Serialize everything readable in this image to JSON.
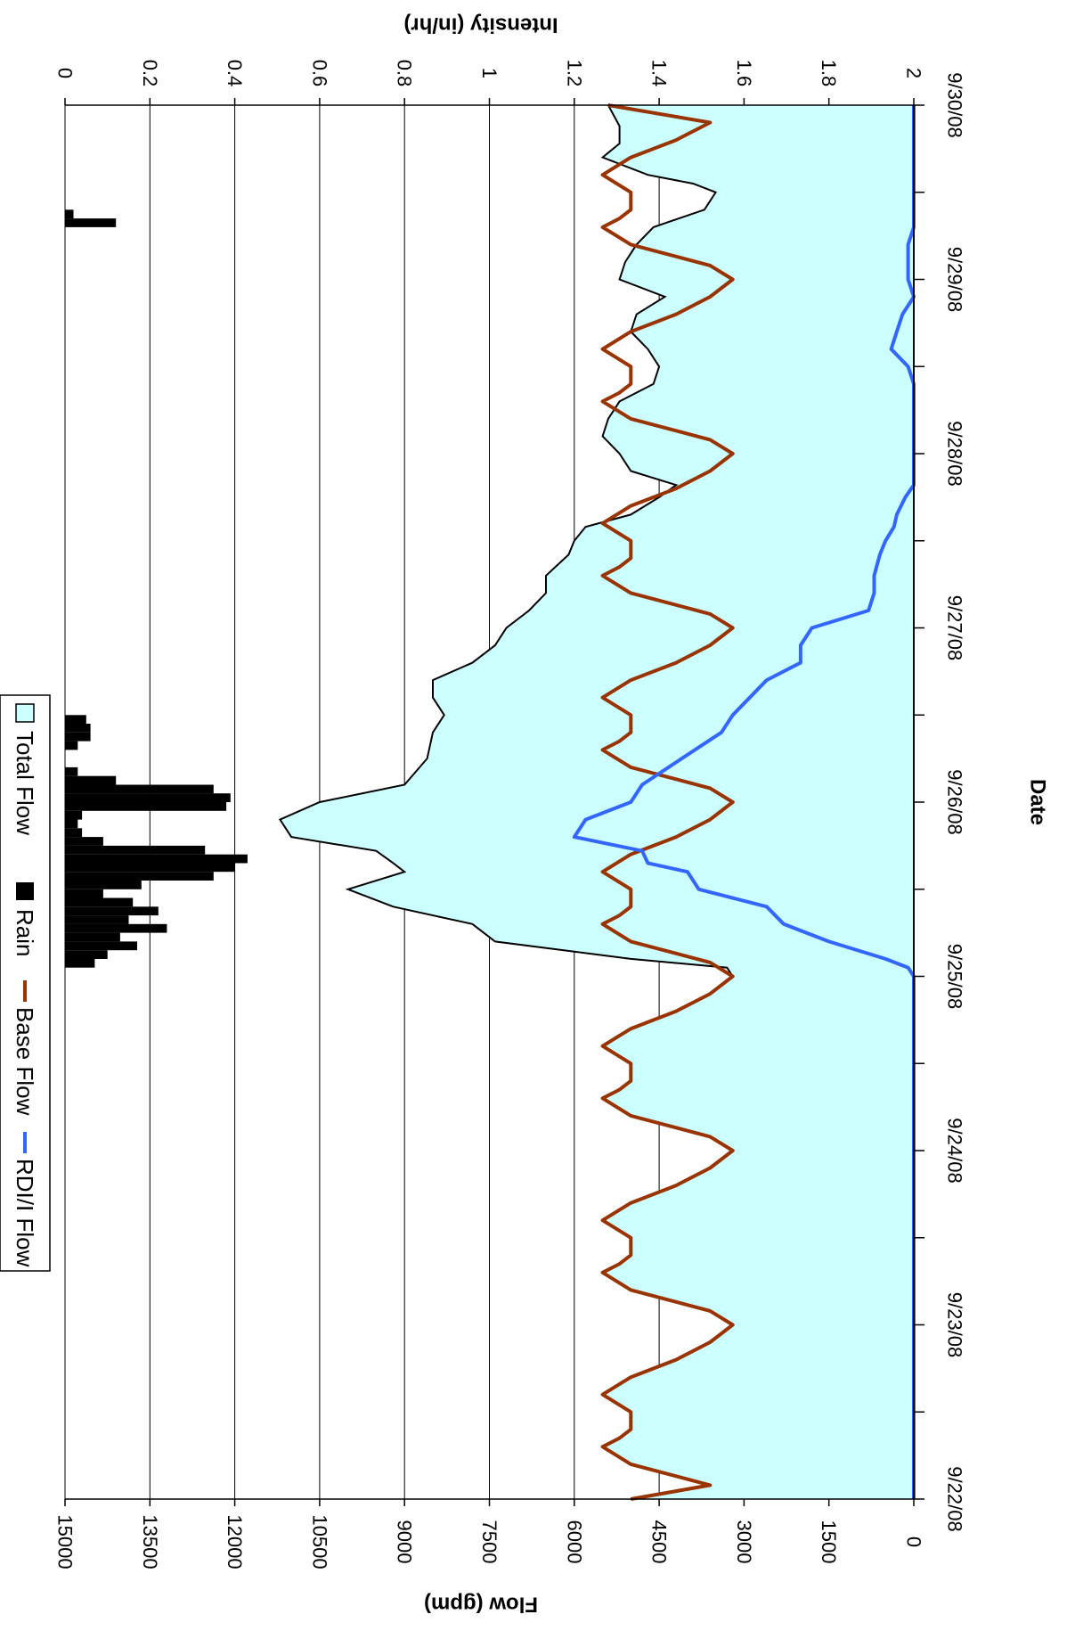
{
  "chart_data": {
    "type": "area",
    "orientation": "rotated-90-clockwise",
    "x_axis": {
      "label": "Date",
      "tick_labels": [
        "9/22/08",
        "9/23/08",
        "9/24/08",
        "9/25/08",
        "9/26/08",
        "9/27/08",
        "9/28/08",
        "9/29/08",
        "9/30/08"
      ],
      "range_days": [
        0,
        8
      ]
    },
    "y_axis_left": {
      "label": "Flow (gpm)",
      "tick_labels": [
        "0",
        "1500",
        "3000",
        "4500",
        "6000",
        "7500",
        "9000",
        "10500",
        "12000",
        "13500",
        "15000"
      ],
      "range": [
        0,
        15000
      ]
    },
    "y_axis_right": {
      "label": "Intensity (in/hr)",
      "tick_labels": [
        "0",
        "0.2",
        "0.4",
        "0.6",
        "0.8",
        "1",
        "1.2",
        "1.4",
        "1.6",
        "1.8",
        "2"
      ],
      "range": [
        0,
        2
      ],
      "inverted": true
    },
    "grid": "horizontal-only",
    "legend": {
      "placement": "top",
      "entries": [
        "Total Flow",
        "Rain",
        "Base Flow",
        "RDI/I Flow"
      ]
    },
    "series": [
      {
        "name": "Total Flow",
        "render": "area",
        "color": "#ccffff",
        "outline": "#000000",
        "points": [
          [
            0,
            5000
          ],
          [
            0.08,
            3600
          ],
          [
            0.2,
            5000
          ],
          [
            0.3,
            5500
          ],
          [
            0.35,
            5200
          ],
          [
            0.4,
            5000
          ],
          [
            0.5,
            5000
          ],
          [
            0.6,
            5500
          ],
          [
            0.7,
            5000
          ],
          [
            0.8,
            4200
          ],
          [
            0.9,
            3600
          ],
          [
            1.0,
            3200
          ],
          [
            1.08,
            3600
          ],
          [
            1.2,
            5000
          ],
          [
            1.3,
            5500
          ],
          [
            1.35,
            5200
          ],
          [
            1.4,
            5000
          ],
          [
            1.5,
            5000
          ],
          [
            1.6,
            5500
          ],
          [
            1.7,
            5000
          ],
          [
            1.8,
            4200
          ],
          [
            1.9,
            3600
          ],
          [
            2.0,
            3200
          ],
          [
            2.08,
            3600
          ],
          [
            2.2,
            5000
          ],
          [
            2.3,
            5500
          ],
          [
            2.35,
            5200
          ],
          [
            2.4,
            5000
          ],
          [
            2.5,
            5000
          ],
          [
            2.6,
            5500
          ],
          [
            2.7,
            5000
          ],
          [
            2.8,
            4200
          ],
          [
            2.9,
            3600
          ],
          [
            3.0,
            3200
          ],
          [
            3.05,
            3300
          ],
          [
            3.1,
            5000
          ],
          [
            3.2,
            7400
          ],
          [
            3.3,
            7800
          ],
          [
            3.4,
            9200
          ],
          [
            3.5,
            10000
          ],
          [
            3.6,
            9000
          ],
          [
            3.65,
            9200
          ],
          [
            3.72,
            9500
          ],
          [
            3.8,
            11000
          ],
          [
            3.9,
            11200
          ],
          [
            4.0,
            10500
          ],
          [
            4.1,
            9000
          ],
          [
            4.25,
            8600
          ],
          [
            4.4,
            8500
          ],
          [
            4.5,
            8300
          ],
          [
            4.6,
            8500
          ],
          [
            4.7,
            8500
          ],
          [
            4.8,
            7800
          ],
          [
            4.9,
            7400
          ],
          [
            5.0,
            7200
          ],
          [
            5.1,
            6800
          ],
          [
            5.2,
            6500
          ],
          [
            5.3,
            6500
          ],
          [
            5.42,
            6100
          ],
          [
            5.5,
            6000
          ],
          [
            5.58,
            5800
          ],
          [
            5.65,
            5000
          ],
          [
            5.75,
            4500
          ],
          [
            5.82,
            4200
          ],
          [
            5.9,
            5000
          ],
          [
            6.0,
            5200
          ],
          [
            6.1,
            5500
          ],
          [
            6.2,
            5400
          ],
          [
            6.3,
            5200
          ],
          [
            6.4,
            4600
          ],
          [
            6.5,
            4500
          ],
          [
            6.6,
            4700
          ],
          [
            6.7,
            5000
          ],
          [
            6.8,
            4900
          ],
          [
            6.9,
            4400
          ],
          [
            7.0,
            5200
          ],
          [
            7.1,
            5100
          ],
          [
            7.2,
            4900
          ],
          [
            7.3,
            4600
          ],
          [
            7.4,
            3700
          ],
          [
            7.5,
            3500
          ],
          [
            7.55,
            3900
          ],
          [
            7.6,
            4700
          ],
          [
            7.7,
            5500
          ],
          [
            7.78,
            5200
          ],
          [
            7.88,
            5200
          ],
          [
            8.0,
            5400
          ]
        ]
      },
      {
        "name": "Base Flow",
        "render": "line",
        "color": "#993300",
        "points": [
          [
            0,
            5000
          ],
          [
            0.08,
            3600
          ],
          [
            0.2,
            5000
          ],
          [
            0.3,
            5500
          ],
          [
            0.35,
            5200
          ],
          [
            0.4,
            5000
          ],
          [
            0.5,
            5000
          ],
          [
            0.6,
            5500
          ],
          [
            0.7,
            5000
          ],
          [
            0.8,
            4200
          ],
          [
            0.9,
            3600
          ],
          [
            1.0,
            3200
          ],
          [
            1.08,
            3600
          ],
          [
            1.2,
            5000
          ],
          [
            1.3,
            5500
          ],
          [
            1.35,
            5200
          ],
          [
            1.4,
            5000
          ],
          [
            1.5,
            5000
          ],
          [
            1.6,
            5500
          ],
          [
            1.7,
            5000
          ],
          [
            1.8,
            4200
          ],
          [
            1.9,
            3600
          ],
          [
            2.0,
            3200
          ],
          [
            2.08,
            3600
          ],
          [
            2.2,
            5000
          ],
          [
            2.3,
            5500
          ],
          [
            2.35,
            5200
          ],
          [
            2.4,
            5000
          ],
          [
            2.5,
            5000
          ],
          [
            2.6,
            5500
          ],
          [
            2.7,
            5000
          ],
          [
            2.8,
            4200
          ],
          [
            2.9,
            3600
          ],
          [
            3.0,
            3200
          ],
          [
            3.08,
            3600
          ],
          [
            3.2,
            5000
          ],
          [
            3.3,
            5500
          ],
          [
            3.35,
            5200
          ],
          [
            3.4,
            5000
          ],
          [
            3.5,
            5000
          ],
          [
            3.6,
            5500
          ],
          [
            3.7,
            5000
          ],
          [
            3.8,
            4200
          ],
          [
            3.9,
            3600
          ],
          [
            4.0,
            3200
          ],
          [
            4.08,
            3600
          ],
          [
            4.2,
            5000
          ],
          [
            4.3,
            5500
          ],
          [
            4.35,
            5200
          ],
          [
            4.4,
            5000
          ],
          [
            4.5,
            5000
          ],
          [
            4.6,
            5500
          ],
          [
            4.7,
            5000
          ],
          [
            4.8,
            4200
          ],
          [
            4.9,
            3600
          ],
          [
            5.0,
            3200
          ],
          [
            5.08,
            3600
          ],
          [
            5.2,
            5000
          ],
          [
            5.3,
            5500
          ],
          [
            5.35,
            5200
          ],
          [
            5.4,
            5000
          ],
          [
            5.5,
            5000
          ],
          [
            5.6,
            5500
          ],
          [
            5.7,
            5000
          ],
          [
            5.8,
            4200
          ],
          [
            5.9,
            3600
          ],
          [
            6.0,
            3200
          ],
          [
            6.08,
            3600
          ],
          [
            6.2,
            5000
          ],
          [
            6.3,
            5500
          ],
          [
            6.35,
            5200
          ],
          [
            6.4,
            5000
          ],
          [
            6.5,
            5000
          ],
          [
            6.6,
            5500
          ],
          [
            6.7,
            5000
          ],
          [
            6.8,
            4200
          ],
          [
            6.9,
            3600
          ],
          [
            7.0,
            3200
          ],
          [
            7.08,
            3600
          ],
          [
            7.2,
            5000
          ],
          [
            7.3,
            5500
          ],
          [
            7.35,
            5200
          ],
          [
            7.4,
            5000
          ],
          [
            7.5,
            5000
          ],
          [
            7.6,
            5500
          ],
          [
            7.7,
            5000
          ],
          [
            7.8,
            4200
          ],
          [
            7.9,
            3600
          ],
          [
            8.0,
            5400
          ]
        ]
      },
      {
        "name": "RDI/I Flow",
        "render": "line",
        "color": "#3366ff",
        "points": [
          [
            0,
            0
          ],
          [
            3.0,
            0
          ],
          [
            3.05,
            100
          ],
          [
            3.1,
            500
          ],
          [
            3.2,
            1500
          ],
          [
            3.3,
            2300
          ],
          [
            3.4,
            2600
          ],
          [
            3.5,
            3800
          ],
          [
            3.6,
            4000
          ],
          [
            3.65,
            4700
          ],
          [
            3.72,
            4800
          ],
          [
            3.8,
            6000
          ],
          [
            3.9,
            5800
          ],
          [
            4.0,
            5000
          ],
          [
            4.1,
            4800
          ],
          [
            4.25,
            4100
          ],
          [
            4.4,
            3400
          ],
          [
            4.5,
            3200
          ],
          [
            4.6,
            2900
          ],
          [
            4.7,
            2600
          ],
          [
            4.8,
            2000
          ],
          [
            4.9,
            2000
          ],
          [
            5.0,
            1800
          ],
          [
            5.1,
            800
          ],
          [
            5.2,
            700
          ],
          [
            5.3,
            700
          ],
          [
            5.42,
            600
          ],
          [
            5.5,
            500
          ],
          [
            5.58,
            350
          ],
          [
            5.65,
            300
          ],
          [
            5.75,
            150
          ],
          [
            5.82,
            0
          ],
          [
            6.0,
            0
          ],
          [
            6.2,
            0
          ],
          [
            6.4,
            0
          ],
          [
            6.5,
            100
          ],
          [
            6.6,
            400
          ],
          [
            6.7,
            300
          ],
          [
            6.8,
            200
          ],
          [
            6.9,
            0
          ],
          [
            7.0,
            100
          ],
          [
            7.1,
            100
          ],
          [
            7.2,
            100
          ],
          [
            7.3,
            0
          ],
          [
            7.5,
            0
          ],
          [
            7.9,
            0
          ],
          [
            8.0,
            0
          ]
        ]
      },
      {
        "name": "Rain",
        "render": "bar",
        "color": "#000000",
        "bars": [
          [
            3.05,
            0.07
          ],
          [
            3.1,
            0.1
          ],
          [
            3.15,
            0.17
          ],
          [
            3.2,
            0.13
          ],
          [
            3.25,
            0.24
          ],
          [
            3.3,
            0.15
          ],
          [
            3.35,
            0.22
          ],
          [
            3.4,
            0.16
          ],
          [
            3.45,
            0.09
          ],
          [
            3.5,
            0.18
          ],
          [
            3.55,
            0.35
          ],
          [
            3.6,
            0.4
          ],
          [
            3.65,
            0.43
          ],
          [
            3.7,
            0.33
          ],
          [
            3.75,
            0.09
          ],
          [
            3.8,
            0.04
          ],
          [
            3.85,
            0.03
          ],
          [
            3.9,
            0.04
          ],
          [
            3.95,
            0.38
          ],
          [
            4.0,
            0.39
          ],
          [
            4.05,
            0.35
          ],
          [
            4.1,
            0.12
          ],
          [
            4.15,
            0.03
          ],
          [
            4.3,
            0.03
          ],
          [
            4.35,
            0.06
          ],
          [
            4.4,
            0.06
          ],
          [
            4.45,
            0.05
          ],
          [
            7.3,
            0.12
          ],
          [
            7.35,
            0.02
          ]
        ]
      }
    ]
  }
}
